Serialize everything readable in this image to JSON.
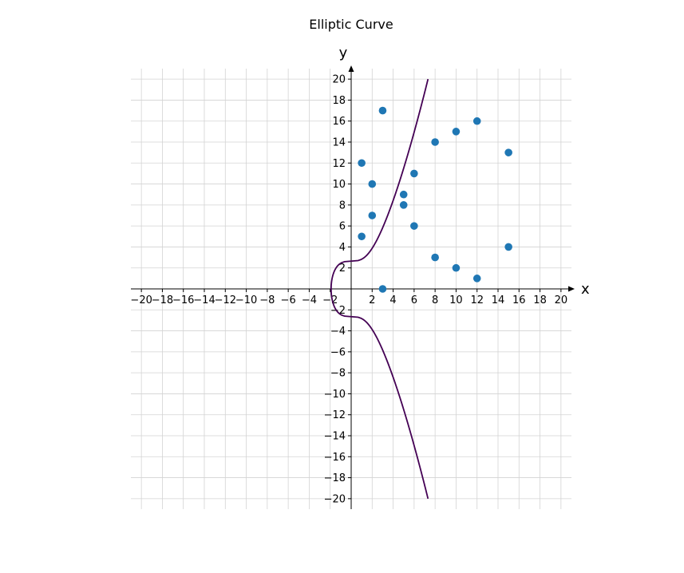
{
  "chart_data": {
    "type": "scatter",
    "title": "Elliptic Curve",
    "xlabel": "x",
    "ylabel": "y",
    "xlim": [
      -21,
      21
    ],
    "ylim": [
      -21,
      21
    ],
    "xticks": [
      -20,
      -18,
      -16,
      -14,
      -12,
      -10,
      -8,
      -6,
      -4,
      -2,
      2,
      4,
      6,
      8,
      10,
      12,
      14,
      16,
      18,
      20
    ],
    "yticks": [
      -20,
      -18,
      -16,
      -14,
      -12,
      -10,
      -8,
      -6,
      -4,
      -2,
      2,
      4,
      6,
      8,
      10,
      12,
      14,
      16,
      18,
      20
    ],
    "grid": true,
    "curve": {
      "equation": "y^2 = x^3 + 7",
      "a": 0,
      "b": 7,
      "color": "#440154",
      "y_range": [
        -20,
        20
      ]
    },
    "points": {
      "color": "#1f77b4",
      "values": [
        [
          1,
          5
        ],
        [
          1,
          12
        ],
        [
          2,
          7
        ],
        [
          2,
          10
        ],
        [
          3,
          0
        ],
        [
          3,
          17
        ],
        [
          5,
          8
        ],
        [
          5,
          9
        ],
        [
          6,
          6
        ],
        [
          6,
          11
        ],
        [
          8,
          3
        ],
        [
          8,
          14
        ],
        [
          10,
          2
        ],
        [
          10,
          15
        ],
        [
          12,
          1
        ],
        [
          12,
          16
        ],
        [
          15,
          4
        ],
        [
          15,
          13
        ]
      ]
    }
  }
}
